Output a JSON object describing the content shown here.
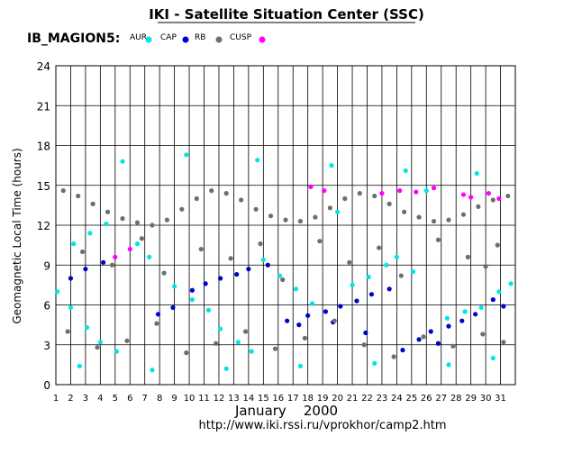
{
  "chart_data": {
    "type": "scatter",
    "title": "IKI - Satellite Situation Center (SSC)",
    "satellite": "IB_MAGION5:",
    "ylabel": "Geomagnetic  Local Time  (hours)",
    "xlabel": "January    2000",
    "footer": "http://www.iki.rssi.ru/vprokhor/camp2.htm",
    "ylim": [
      0,
      24
    ],
    "yticks": [
      "0",
      "3",
      "6",
      "9",
      "12",
      "15",
      "18",
      "21",
      "24"
    ],
    "xlim": [
      1,
      32
    ],
    "xticks": [
      "1",
      "2",
      "3",
      "4",
      "5",
      "6",
      "7",
      "8",
      "9",
      "10",
      "11",
      "12",
      "13",
      "14",
      "15",
      "16",
      "17",
      "18",
      "19",
      "20",
      "21",
      "22",
      "23",
      "24",
      "25",
      "26",
      "27",
      "28",
      "29",
      "30",
      "31"
    ],
    "grid": true,
    "legend": [
      {
        "name": "AUR",
        "color": "#00e5e5"
      },
      {
        "name": "CAP",
        "color": "#0000d0"
      },
      {
        "name": "RB",
        "color": "#6e6e6e"
      },
      {
        "name": "CUSP",
        "color": "#ff00ff"
      }
    ],
    "series": [
      {
        "name": "AUR",
        "color": "#00e5e5",
        "points": [
          [
            1.1,
            7.0
          ],
          [
            2.0,
            5.8
          ],
          [
            3.1,
            4.3
          ],
          [
            4.0,
            3.2
          ],
          [
            5.1,
            2.5
          ],
          [
            2.2,
            10.6
          ],
          [
            3.3,
            11.4
          ],
          [
            4.4,
            12.1
          ],
          [
            6.5,
            10.6
          ],
          [
            7.3,
            9.6
          ],
          [
            9.0,
            7.4
          ],
          [
            10.2,
            6.4
          ],
          [
            11.3,
            5.6
          ],
          [
            12.1,
            4.2
          ],
          [
            13.3,
            3.2
          ],
          [
            14.2,
            2.5
          ],
          [
            15.0,
            9.4
          ],
          [
            16.1,
            8.2
          ],
          [
            17.2,
            7.2
          ],
          [
            18.3,
            6.1
          ],
          [
            21.0,
            7.5
          ],
          [
            22.1,
            8.1
          ],
          [
            23.3,
            9.0
          ],
          [
            24.0,
            9.6
          ],
          [
            25.1,
            8.5
          ],
          [
            27.4,
            5.0
          ],
          [
            28.6,
            5.5
          ],
          [
            29.7,
            5.8
          ],
          [
            30.9,
            7.0
          ],
          [
            31.7,
            7.6
          ],
          [
            5.5,
            16.8
          ],
          [
            9.8,
            17.3
          ],
          [
            14.6,
            16.9
          ],
          [
            19.6,
            16.5
          ],
          [
            24.6,
            16.1
          ],
          [
            29.4,
            15.9
          ],
          [
            2.6,
            1.4
          ],
          [
            7.5,
            1.1
          ],
          [
            12.5,
            1.2
          ],
          [
            17.5,
            1.4
          ],
          [
            22.5,
            1.6
          ],
          [
            27.5,
            1.5
          ],
          [
            30.5,
            2.0
          ],
          [
            26.0,
            14.6
          ],
          [
            20.0,
            13.0
          ]
        ]
      },
      {
        "name": "CAP",
        "color": "#0000d0",
        "points": [
          [
            2.0,
            8.0
          ],
          [
            3.0,
            8.7
          ],
          [
            4.2,
            9.2
          ],
          [
            7.9,
            5.3
          ],
          [
            8.9,
            5.8
          ],
          [
            10.2,
            7.1
          ],
          [
            11.1,
            7.6
          ],
          [
            12.1,
            8.0
          ],
          [
            13.2,
            8.3
          ],
          [
            14.0,
            8.7
          ],
          [
            15.3,
            9.0
          ],
          [
            16.6,
            4.8
          ],
          [
            18.0,
            5.2
          ],
          [
            19.2,
            5.5
          ],
          [
            20.2,
            5.9
          ],
          [
            21.3,
            6.3
          ],
          [
            22.3,
            6.8
          ],
          [
            23.5,
            7.2
          ],
          [
            24.4,
            2.6
          ],
          [
            25.5,
            3.4
          ],
          [
            26.3,
            4.0
          ],
          [
            27.5,
            4.4
          ],
          [
            28.4,
            4.8
          ],
          [
            29.3,
            5.3
          ],
          [
            30.5,
            6.4
          ],
          [
            31.2,
            5.9
          ],
          [
            19.7,
            4.7
          ],
          [
            17.4,
            4.5
          ],
          [
            21.9,
            3.9
          ],
          [
            26.8,
            3.1
          ]
        ]
      },
      {
        "name": "RB",
        "color": "#6e6e6e",
        "points": [
          [
            1.5,
            14.6
          ],
          [
            2.5,
            14.2
          ],
          [
            3.5,
            13.6
          ],
          [
            4.5,
            13.0
          ],
          [
            5.5,
            12.5
          ],
          [
            6.5,
            12.2
          ],
          [
            7.5,
            12.0
          ],
          [
            8.5,
            12.4
          ],
          [
            9.5,
            13.2
          ],
          [
            10.5,
            14.0
          ],
          [
            11.5,
            14.6
          ],
          [
            12.5,
            14.4
          ],
          [
            13.5,
            13.9
          ],
          [
            14.5,
            13.2
          ],
          [
            15.5,
            12.7
          ],
          [
            16.5,
            12.4
          ],
          [
            17.5,
            12.3
          ],
          [
            18.5,
            12.6
          ],
          [
            19.5,
            13.3
          ],
          [
            20.5,
            14.0
          ],
          [
            21.5,
            14.4
          ],
          [
            22.5,
            14.2
          ],
          [
            23.5,
            13.6
          ],
          [
            24.5,
            13.0
          ],
          [
            25.5,
            12.6
          ],
          [
            26.5,
            12.3
          ],
          [
            27.5,
            12.4
          ],
          [
            28.5,
            12.8
          ],
          [
            29.5,
            13.4
          ],
          [
            30.5,
            13.9
          ],
          [
            31.5,
            14.2
          ],
          [
            1.8,
            4.0
          ],
          [
            3.8,
            2.8
          ],
          [
            5.8,
            3.3
          ],
          [
            7.8,
            4.6
          ],
          [
            9.8,
            2.4
          ],
          [
            11.8,
            3.1
          ],
          [
            13.8,
            4.0
          ],
          [
            15.8,
            2.7
          ],
          [
            17.8,
            3.5
          ],
          [
            19.8,
            4.8
          ],
          [
            21.8,
            3.0
          ],
          [
            23.8,
            2.1
          ],
          [
            25.8,
            3.6
          ],
          [
            27.8,
            2.9
          ],
          [
            29.8,
            3.8
          ],
          [
            31.2,
            3.2
          ],
          [
            2.8,
            10.0
          ],
          [
            6.8,
            11.0
          ],
          [
            10.8,
            10.2
          ],
          [
            14.8,
            10.6
          ],
          [
            18.8,
            10.8
          ],
          [
            22.8,
            10.3
          ],
          [
            26.8,
            10.9
          ],
          [
            30.8,
            10.5
          ],
          [
            4.8,
            9.0
          ],
          [
            12.8,
            9.5
          ],
          [
            20.8,
            9.2
          ],
          [
            28.8,
            9.6
          ],
          [
            8.3,
            8.4
          ],
          [
            16.3,
            7.9
          ],
          [
            24.3,
            8.2
          ],
          [
            30.0,
            8.9
          ]
        ]
      },
      {
        "name": "CUSP",
        "color": "#ff00ff",
        "points": [
          [
            5.0,
            9.6
          ],
          [
            6.0,
            10.2
          ],
          [
            18.2,
            14.9
          ],
          [
            19.1,
            14.6
          ],
          [
            23.0,
            14.4
          ],
          [
            24.2,
            14.6
          ],
          [
            25.3,
            14.5
          ],
          [
            26.5,
            14.8
          ],
          [
            28.5,
            14.3
          ],
          [
            29.0,
            14.1
          ],
          [
            30.2,
            14.4
          ],
          [
            30.9,
            14.0
          ]
        ]
      }
    ]
  }
}
